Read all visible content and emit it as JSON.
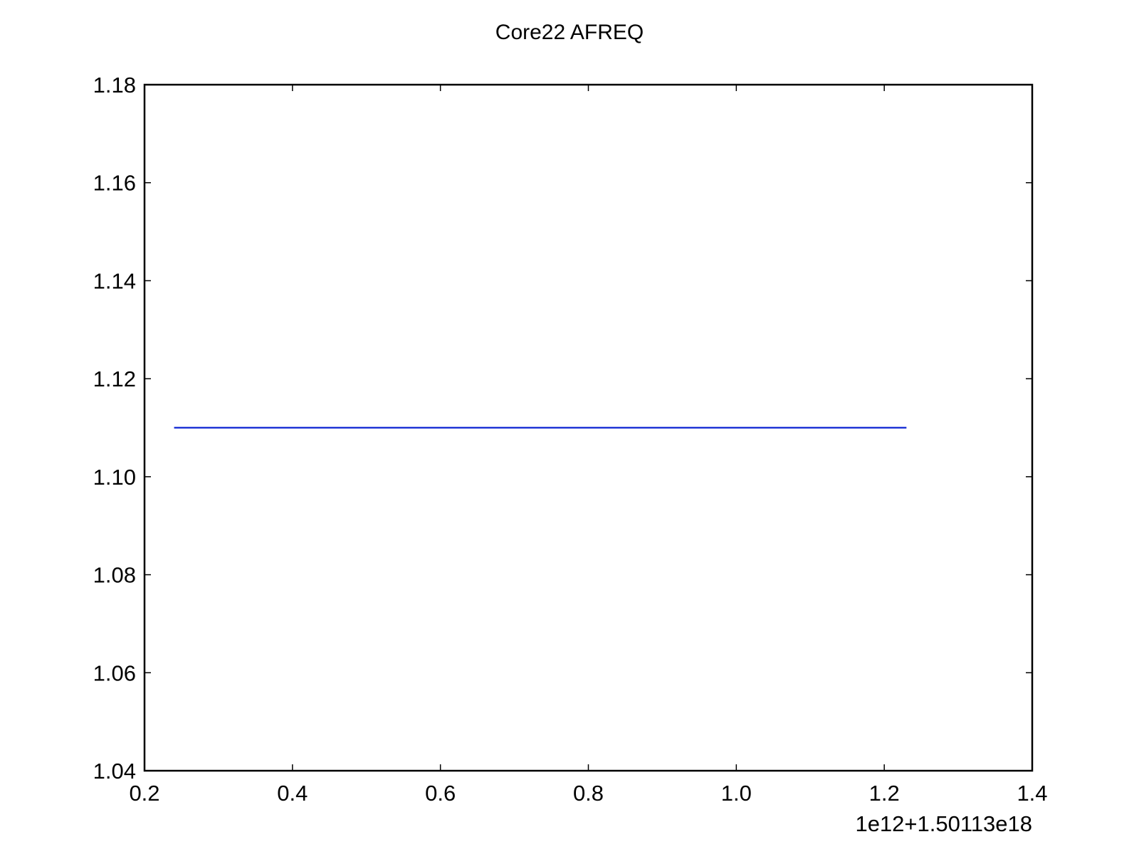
{
  "chart_data": {
    "type": "line",
    "title": "Core22 AFREQ",
    "xlabel": "",
    "ylabel": "",
    "x_offset_label": "1e12+1.50113e18",
    "xlim": [
      0.2,
      1.4
    ],
    "ylim": [
      1.04,
      1.18
    ],
    "x_ticks": [
      0.2,
      0.4,
      0.6,
      0.8,
      1.0,
      1.2,
      1.4
    ],
    "x_tick_labels": [
      "0.2",
      "0.4",
      "0.6",
      "0.8",
      "1.0",
      "1.2",
      "1.4"
    ],
    "y_ticks": [
      1.04,
      1.06,
      1.08,
      1.1,
      1.12,
      1.14,
      1.16,
      1.18
    ],
    "y_tick_labels": [
      "1.04",
      "1.06",
      "1.08",
      "1.10",
      "1.12",
      "1.14",
      "1.16",
      "1.18"
    ],
    "grid": false,
    "legend": "none",
    "series": [
      {
        "color": "#1f35d6",
        "x": [
          0.24,
          1.23
        ],
        "y": [
          1.11,
          1.11
        ]
      }
    ]
  }
}
